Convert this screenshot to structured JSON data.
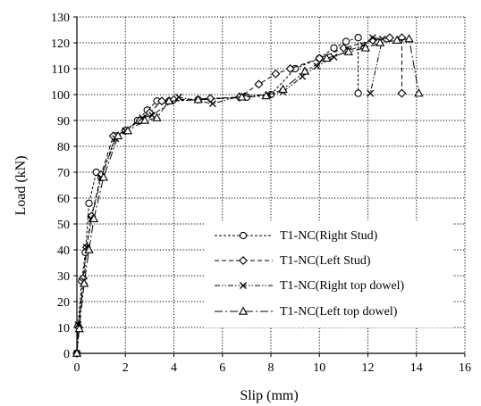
{
  "chart_data": {
    "type": "line",
    "title": "",
    "xlabel": "Slip (mm)",
    "ylabel": "Load (kN)",
    "xlim": [
      0,
      16
    ],
    "ylim": [
      0,
      130
    ],
    "xticks": [
      0,
      2,
      4,
      6,
      8,
      10,
      12,
      14,
      16
    ],
    "yticks": [
      0,
      10,
      20,
      30,
      40,
      50,
      60,
      70,
      80,
      90,
      100,
      110,
      120,
      130
    ],
    "grid": "dotted horizontal and vertical",
    "legend_position": "lower-right",
    "series": [
      {
        "name": "T1-NC(Right Stud)",
        "marker": "circle",
        "dash": "short-dash",
        "points": [
          [
            0,
            0
          ],
          [
            0.05,
            10.5
          ],
          [
            0.2,
            28
          ],
          [
            0.35,
            39
          ],
          [
            0.5,
            58
          ],
          [
            0.8,
            70
          ],
          [
            1.0,
            68
          ],
          [
            1.6,
            84
          ],
          [
            2.0,
            86
          ],
          [
            2.5,
            90
          ],
          [
            2.9,
            94
          ],
          [
            3.3,
            97.5
          ],
          [
            3.8,
            97.5
          ],
          [
            5.0,
            98
          ],
          [
            7.0,
            99
          ],
          [
            8.0,
            100
          ],
          [
            9.0,
            110
          ],
          [
            10.0,
            114
          ],
          [
            10.6,
            118
          ],
          [
            11.1,
            120.5
          ],
          [
            11.6,
            122
          ],
          [
            11.6,
            100.5
          ]
        ]
      },
      {
        "name": "T1-NC(Left Stud)",
        "marker": "diamond",
        "dash": "dash",
        "points": [
          [
            0,
            0
          ],
          [
            0.08,
            10
          ],
          [
            0.25,
            29
          ],
          [
            0.4,
            41
          ],
          [
            0.6,
            53
          ],
          [
            1.0,
            69
          ],
          [
            1.5,
            84
          ],
          [
            2.0,
            86
          ],
          [
            2.6,
            90
          ],
          [
            3.0,
            93
          ],
          [
            3.5,
            97.5
          ],
          [
            4.0,
            98
          ],
          [
            5.5,
            98.5
          ],
          [
            6.7,
            99
          ],
          [
            7.5,
            104
          ],
          [
            8.2,
            108
          ],
          [
            8.8,
            110
          ],
          [
            10.0,
            114
          ],
          [
            11.0,
            118
          ],
          [
            12.2,
            121
          ],
          [
            12.9,
            122
          ],
          [
            13.4,
            122
          ],
          [
            13.4,
            100.5
          ]
        ]
      },
      {
        "name": "T1-NC(Right top dowel)",
        "marker": "x",
        "dash": "dash-dot-dot",
        "points": [
          [
            0,
            0
          ],
          [
            0.05,
            11
          ],
          [
            0.3,
            28
          ],
          [
            0.4,
            41
          ],
          [
            0.6,
            52
          ],
          [
            1.0,
            68
          ],
          [
            1.6,
            83
          ],
          [
            2.0,
            86
          ],
          [
            2.7,
            91
          ],
          [
            3.1,
            92
          ],
          [
            4.2,
            99
          ],
          [
            5.6,
            96.5
          ],
          [
            6.8,
            99.5
          ],
          [
            7.9,
            100
          ],
          [
            8.5,
            101
          ],
          [
            9.3,
            107
          ],
          [
            9.9,
            111
          ],
          [
            10.6,
            114.5
          ],
          [
            11.2,
            117
          ],
          [
            11.8,
            119
          ],
          [
            12.2,
            122
          ],
          [
            12.6,
            121.5
          ],
          [
            12.1,
            100.5
          ]
        ]
      },
      {
        "name": "T1-NC(Left top dowel)",
        "marker": "triangle",
        "dash": "long-dash-dot",
        "points": [
          [
            0,
            0
          ],
          [
            0.1,
            9.5
          ],
          [
            0.3,
            27
          ],
          [
            0.5,
            40
          ],
          [
            0.7,
            52
          ],
          [
            1.1,
            68
          ],
          [
            1.7,
            84
          ],
          [
            2.1,
            86
          ],
          [
            2.8,
            90
          ],
          [
            3.3,
            91
          ],
          [
            3.8,
            97.5
          ],
          [
            5.0,
            98
          ],
          [
            6.8,
            99
          ],
          [
            7.8,
            99.5
          ],
          [
            8.5,
            102
          ],
          [
            9.4,
            109
          ],
          [
            10.3,
            114
          ],
          [
            11.2,
            116.5
          ],
          [
            11.9,
            118
          ],
          [
            12.5,
            120
          ],
          [
            13.2,
            121
          ],
          [
            13.7,
            121.5
          ],
          [
            14.1,
            100.5
          ]
        ]
      }
    ]
  },
  "colors": {
    "axis": "#000000",
    "grid": "#000000",
    "series": "#000000",
    "background": "#ffffff"
  }
}
